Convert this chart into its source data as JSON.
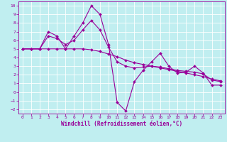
{
  "xlabel": "Windchill (Refroidissement éolien,°C)",
  "xlim": [
    -0.5,
    23.5
  ],
  "ylim": [
    -2.5,
    10.5
  ],
  "xticks": [
    0,
    1,
    2,
    3,
    4,
    5,
    6,
    7,
    8,
    9,
    10,
    11,
    12,
    13,
    14,
    15,
    16,
    17,
    18,
    19,
    20,
    21,
    22,
    23
  ],
  "yticks": [
    -2,
    -1,
    0,
    1,
    2,
    3,
    4,
    5,
    6,
    7,
    8,
    9,
    10
  ],
  "bg_color": "#c0eef0",
  "grid_color": "#ffffff",
  "line_color": "#990099",
  "line1_y": [
    5.0,
    5.0,
    5.0,
    7.0,
    6.5,
    5.0,
    6.5,
    8.0,
    10.0,
    9.0,
    5.5,
    -1.2,
    -2.2,
    1.2,
    2.5,
    3.5,
    4.5,
    3.0,
    2.2,
    2.3,
    3.0,
    2.2,
    0.8,
    0.8
  ],
  "line2_y": [
    5.0,
    5.0,
    5.0,
    5.0,
    5.0,
    5.0,
    5.0,
    5.0,
    4.9,
    4.7,
    4.4,
    4.1,
    3.7,
    3.4,
    3.2,
    3.0,
    2.8,
    2.6,
    2.4,
    2.2,
    2.0,
    1.8,
    1.5,
    1.3
  ],
  "line3_y": [
    5.0,
    5.0,
    5.0,
    6.5,
    6.2,
    5.5,
    6.0,
    7.2,
    8.3,
    7.2,
    5.2,
    3.5,
    3.0,
    2.8,
    2.9,
    3.0,
    2.9,
    2.7,
    2.5,
    2.4,
    2.3,
    2.1,
    1.4,
    1.2
  ],
  "marker": "D",
  "markersize": 2.0,
  "linewidth": 0.8,
  "tick_fontsize": 4.5,
  "label_fontsize": 5.5
}
